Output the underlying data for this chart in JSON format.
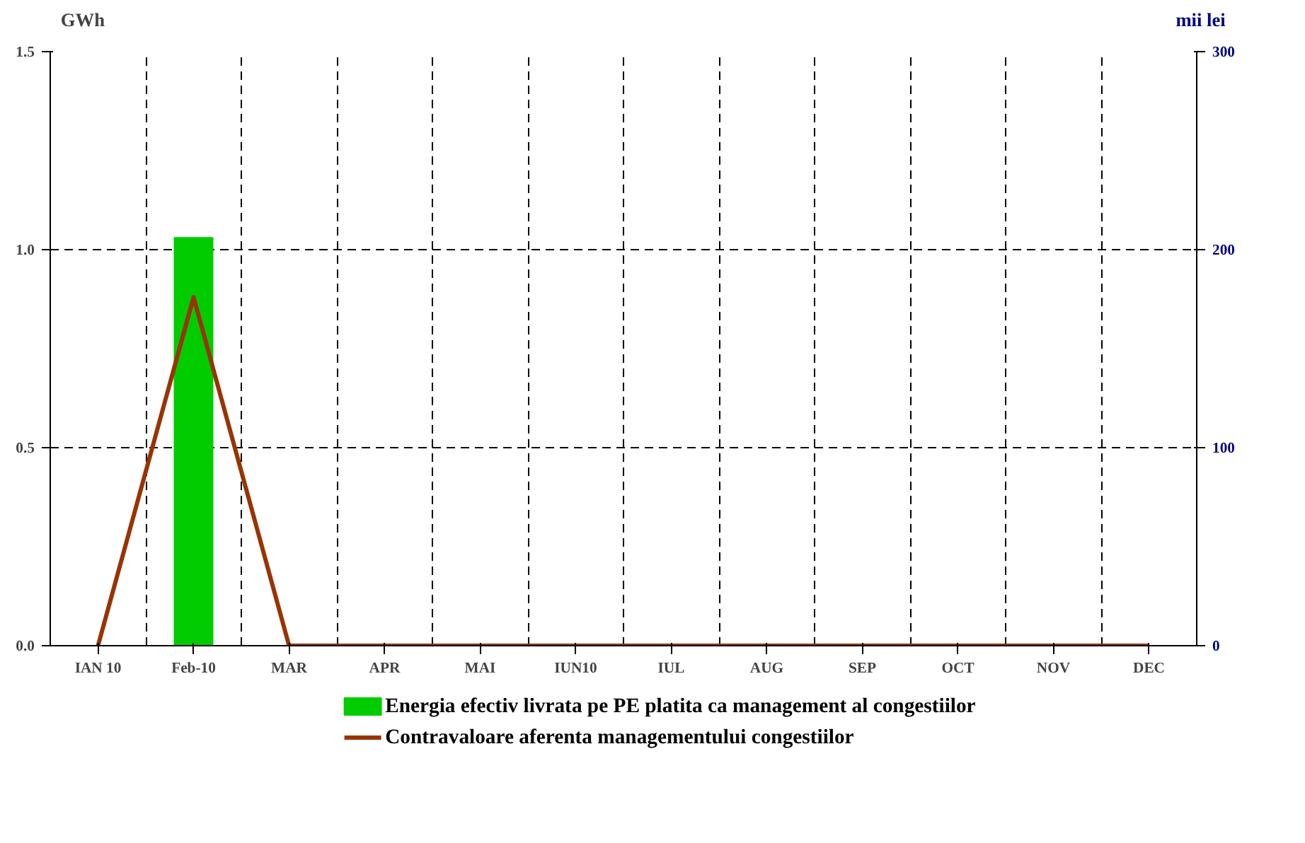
{
  "chart_data": {
    "type": "bar",
    "categories": [
      "IAN 10",
      "Feb-10",
      "MAR",
      "APR",
      "MAI",
      "IUN10",
      "IUL",
      "AUG",
      "SEP",
      "OCT",
      "NOV",
      "DEC"
    ],
    "ylabel": "GWh",
    "y2label": "mii lei",
    "ylim": [
      0,
      1.5
    ],
    "yticks": [
      {
        "value": 0,
        "label": "0.0"
      },
      {
        "value": 0.5,
        "label": "0.5"
      },
      {
        "value": 1.0,
        "label": "1.0"
      },
      {
        "value": 1.5,
        "label": "1.5"
      }
    ],
    "y2lim": [
      0,
      300
    ],
    "y2ticks": [
      0,
      100,
      200,
      300
    ],
    "grid": true,
    "legend": "bottom",
    "series": [
      {
        "name": "Energia efectiv livrata pe PE platita ca management al congestiilor",
        "color": "#00cc00",
        "values": [
          0,
          1.03,
          0,
          0,
          0,
          0,
          0,
          0,
          0,
          0,
          0,
          0
        ]
      },
      {
        "name": "Contravaloare aferenta managementului congestiilor",
        "type": "line",
        "axis": "y2",
        "color": "#993300",
        "values": [
          0,
          176,
          0,
          0,
          0,
          0,
          0,
          0,
          0,
          0,
          0,
          0
        ]
      }
    ]
  }
}
